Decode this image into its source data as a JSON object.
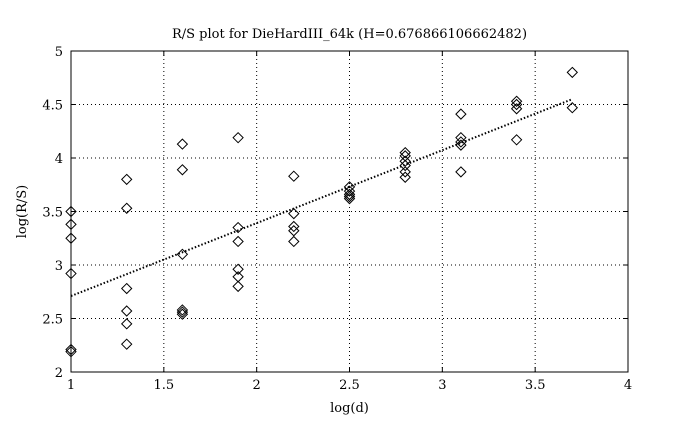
{
  "chart_data": {
    "type": "scatter",
    "title": "R/S plot for DieHardIII_64k (H=0.676866106662482)",
    "xlabel": "log(d)",
    "ylabel": "log(R/S)",
    "xlim": [
      1,
      4
    ],
    "ylim": [
      2,
      5
    ],
    "xticks": [
      "1",
      "1.5",
      "2",
      "2.5",
      "3",
      "3.5",
      "4"
    ],
    "yticks": [
      "2",
      "2.5",
      "3",
      "3.5",
      "4",
      "4.5",
      "5"
    ],
    "grid": true,
    "marker": "diamond",
    "points": [
      {
        "x": 1.0,
        "y": 3.5
      },
      {
        "x": 1.0,
        "y": 3.38
      },
      {
        "x": 1.0,
        "y": 3.25
      },
      {
        "x": 1.0,
        "y": 2.92
      },
      {
        "x": 1.0,
        "y": 2.21
      },
      {
        "x": 1.0,
        "y": 2.19
      },
      {
        "x": 1.3,
        "y": 3.8
      },
      {
        "x": 1.3,
        "y": 3.53
      },
      {
        "x": 1.3,
        "y": 2.78
      },
      {
        "x": 1.3,
        "y": 2.57
      },
      {
        "x": 1.3,
        "y": 2.45
      },
      {
        "x": 1.3,
        "y": 2.26
      },
      {
        "x": 1.6,
        "y": 4.13
      },
      {
        "x": 1.6,
        "y": 3.89
      },
      {
        "x": 1.6,
        "y": 3.1
      },
      {
        "x": 1.6,
        "y": 2.58
      },
      {
        "x": 1.6,
        "y": 2.56
      },
      {
        "x": 1.6,
        "y": 2.54
      },
      {
        "x": 1.9,
        "y": 4.19
      },
      {
        "x": 1.9,
        "y": 3.35
      },
      {
        "x": 1.9,
        "y": 3.22
      },
      {
        "x": 1.9,
        "y": 2.96
      },
      {
        "x": 1.9,
        "y": 2.89
      },
      {
        "x": 1.9,
        "y": 2.8
      },
      {
        "x": 2.2,
        "y": 3.83
      },
      {
        "x": 2.2,
        "y": 3.48
      },
      {
        "x": 2.2,
        "y": 3.36
      },
      {
        "x": 2.2,
        "y": 3.32
      },
      {
        "x": 2.2,
        "y": 3.22
      },
      {
        "x": 2.5,
        "y": 3.73
      },
      {
        "x": 2.5,
        "y": 3.69
      },
      {
        "x": 2.5,
        "y": 3.66
      },
      {
        "x": 2.5,
        "y": 3.64
      },
      {
        "x": 2.5,
        "y": 3.62
      },
      {
        "x": 2.8,
        "y": 4.05
      },
      {
        "x": 2.8,
        "y": 4.02
      },
      {
        "x": 2.8,
        "y": 3.97
      },
      {
        "x": 2.8,
        "y": 3.93
      },
      {
        "x": 2.8,
        "y": 3.87
      },
      {
        "x": 2.8,
        "y": 3.82
      },
      {
        "x": 3.1,
        "y": 4.41
      },
      {
        "x": 3.1,
        "y": 4.19
      },
      {
        "x": 3.1,
        "y": 4.15
      },
      {
        "x": 3.1,
        "y": 4.12
      },
      {
        "x": 3.1,
        "y": 3.87
      },
      {
        "x": 3.4,
        "y": 4.53
      },
      {
        "x": 3.4,
        "y": 4.5
      },
      {
        "x": 3.4,
        "y": 4.46
      },
      {
        "x": 3.4,
        "y": 4.17
      },
      {
        "x": 3.7,
        "y": 4.8
      },
      {
        "x": 3.7,
        "y": 4.47
      }
    ],
    "fit_line": {
      "x": [
        1.0,
        3.7
      ],
      "y": [
        2.71,
        4.55
      ],
      "style": "dotted"
    }
  }
}
